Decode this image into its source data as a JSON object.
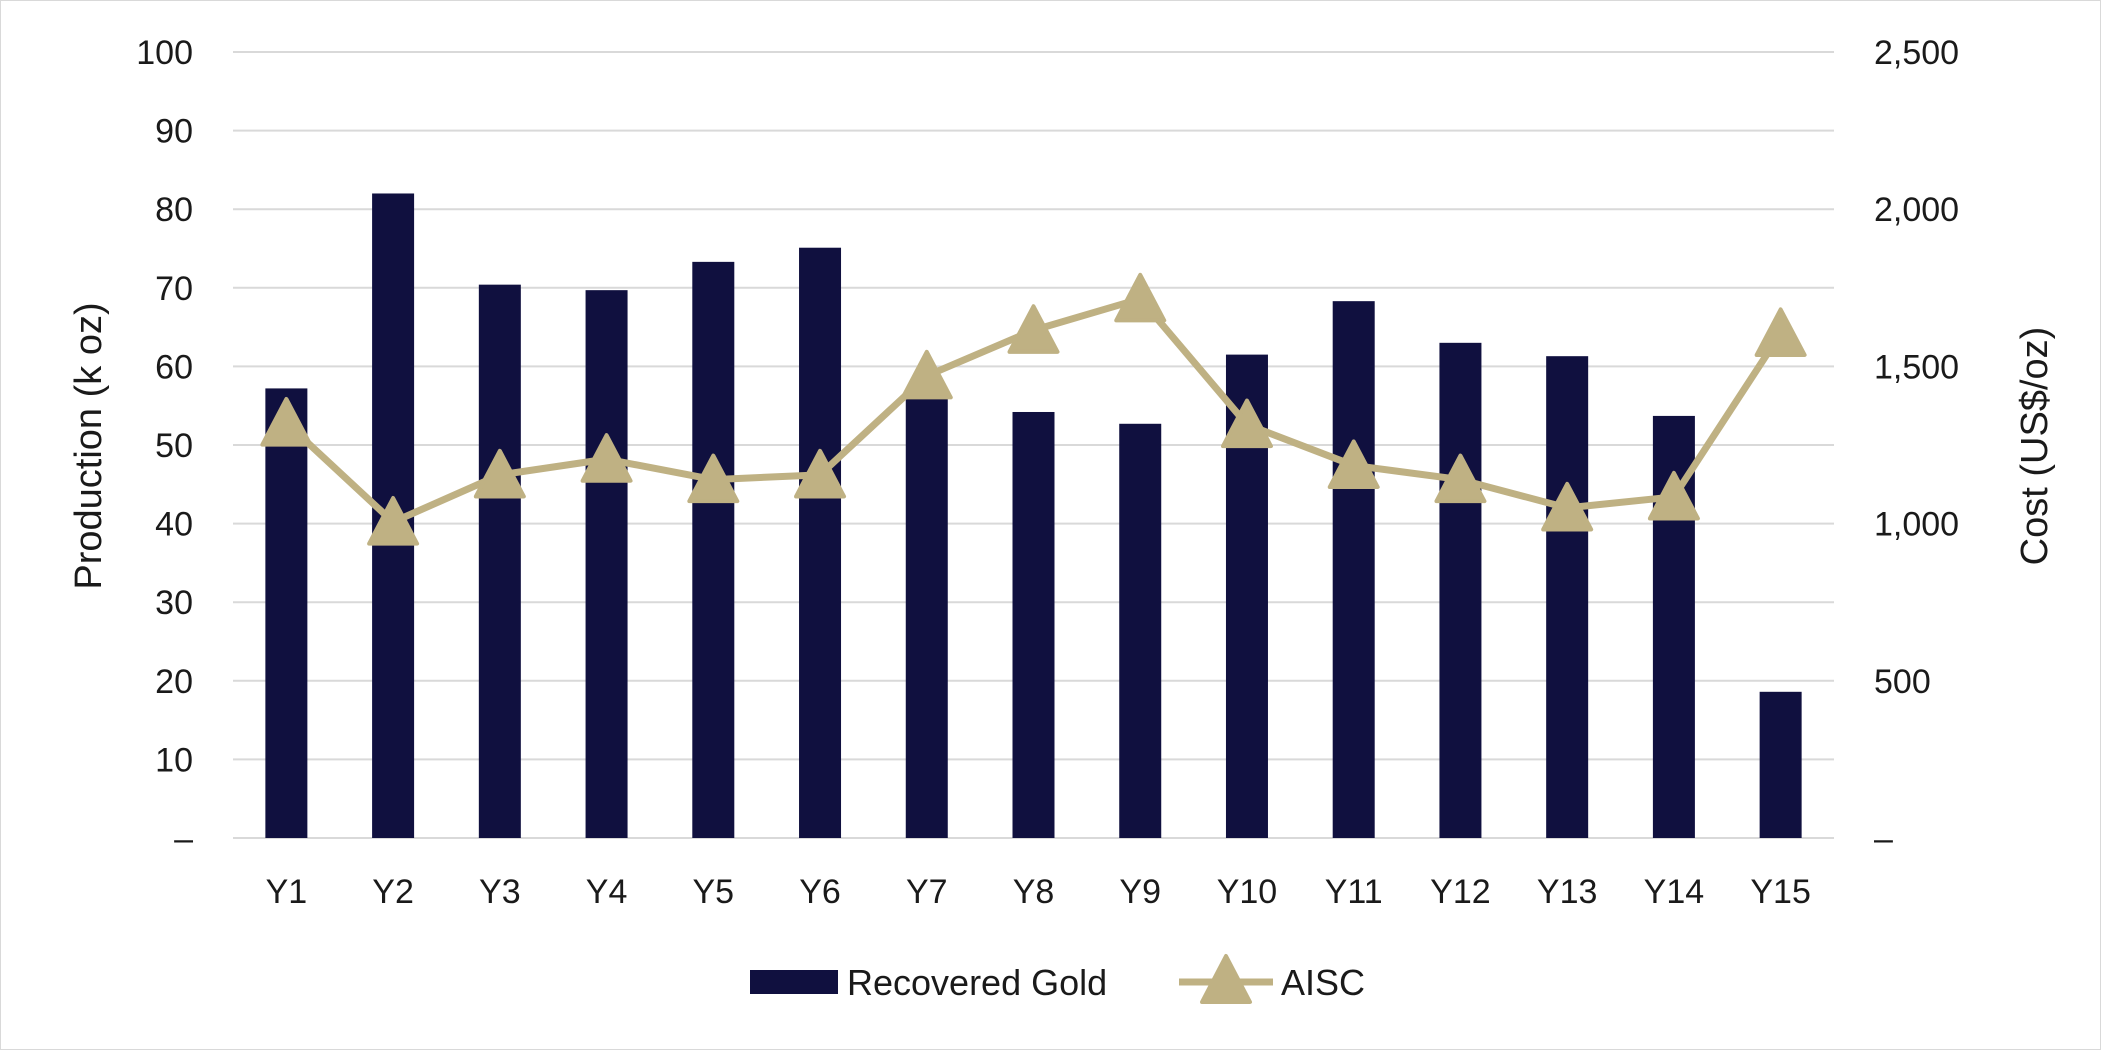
{
  "chart_data": {
    "type": "bar",
    "title": "",
    "categories": [
      "Y1",
      "Y2",
      "Y3",
      "Y4",
      "Y5",
      "Y6",
      "Y7",
      "Y8",
      "Y9",
      "Y10",
      "Y11",
      "Y12",
      "Y13",
      "Y14",
      "Y15"
    ],
    "series": [
      {
        "name": "Recovered Gold",
        "type": "bar",
        "axis": "left",
        "color": "#10103f",
        "values": [
          57.2,
          82.0,
          70.4,
          69.7,
          73.3,
          75.1,
          56.5,
          54.2,
          52.7,
          61.5,
          68.3,
          63.0,
          61.3,
          53.7,
          18.6
        ]
      },
      {
        "name": "AISC",
        "type": "line",
        "marker": "triangle",
        "axis": "right",
        "color": "#bfb183",
        "values": [
          1320,
          1005,
          1155,
          1205,
          1140,
          1155,
          1470,
          1615,
          1715,
          1315,
          1185,
          1140,
          1050,
          1085,
          1605
        ]
      }
    ],
    "ylabel": "Production (k oz)",
    "ylim": [
      0,
      100
    ],
    "yticks": [
      "–",
      "10",
      "20",
      "30",
      "40",
      "50",
      "60",
      "70",
      "80",
      "90",
      "100"
    ],
    "y2label": "Cost (US$/oz)",
    "y2lim": [
      0,
      2500
    ],
    "y2ticks": [
      "–",
      "500",
      "1,000",
      "1,500",
      "2,000",
      "2,500"
    ],
    "xlabel": "",
    "grid": true,
    "legend": {
      "placement": "bottom",
      "entries": [
        "Recovered Gold",
        "AISC"
      ]
    },
    "colors": {
      "grid": "#d9d9d9",
      "text": "#1a1a1a"
    }
  }
}
